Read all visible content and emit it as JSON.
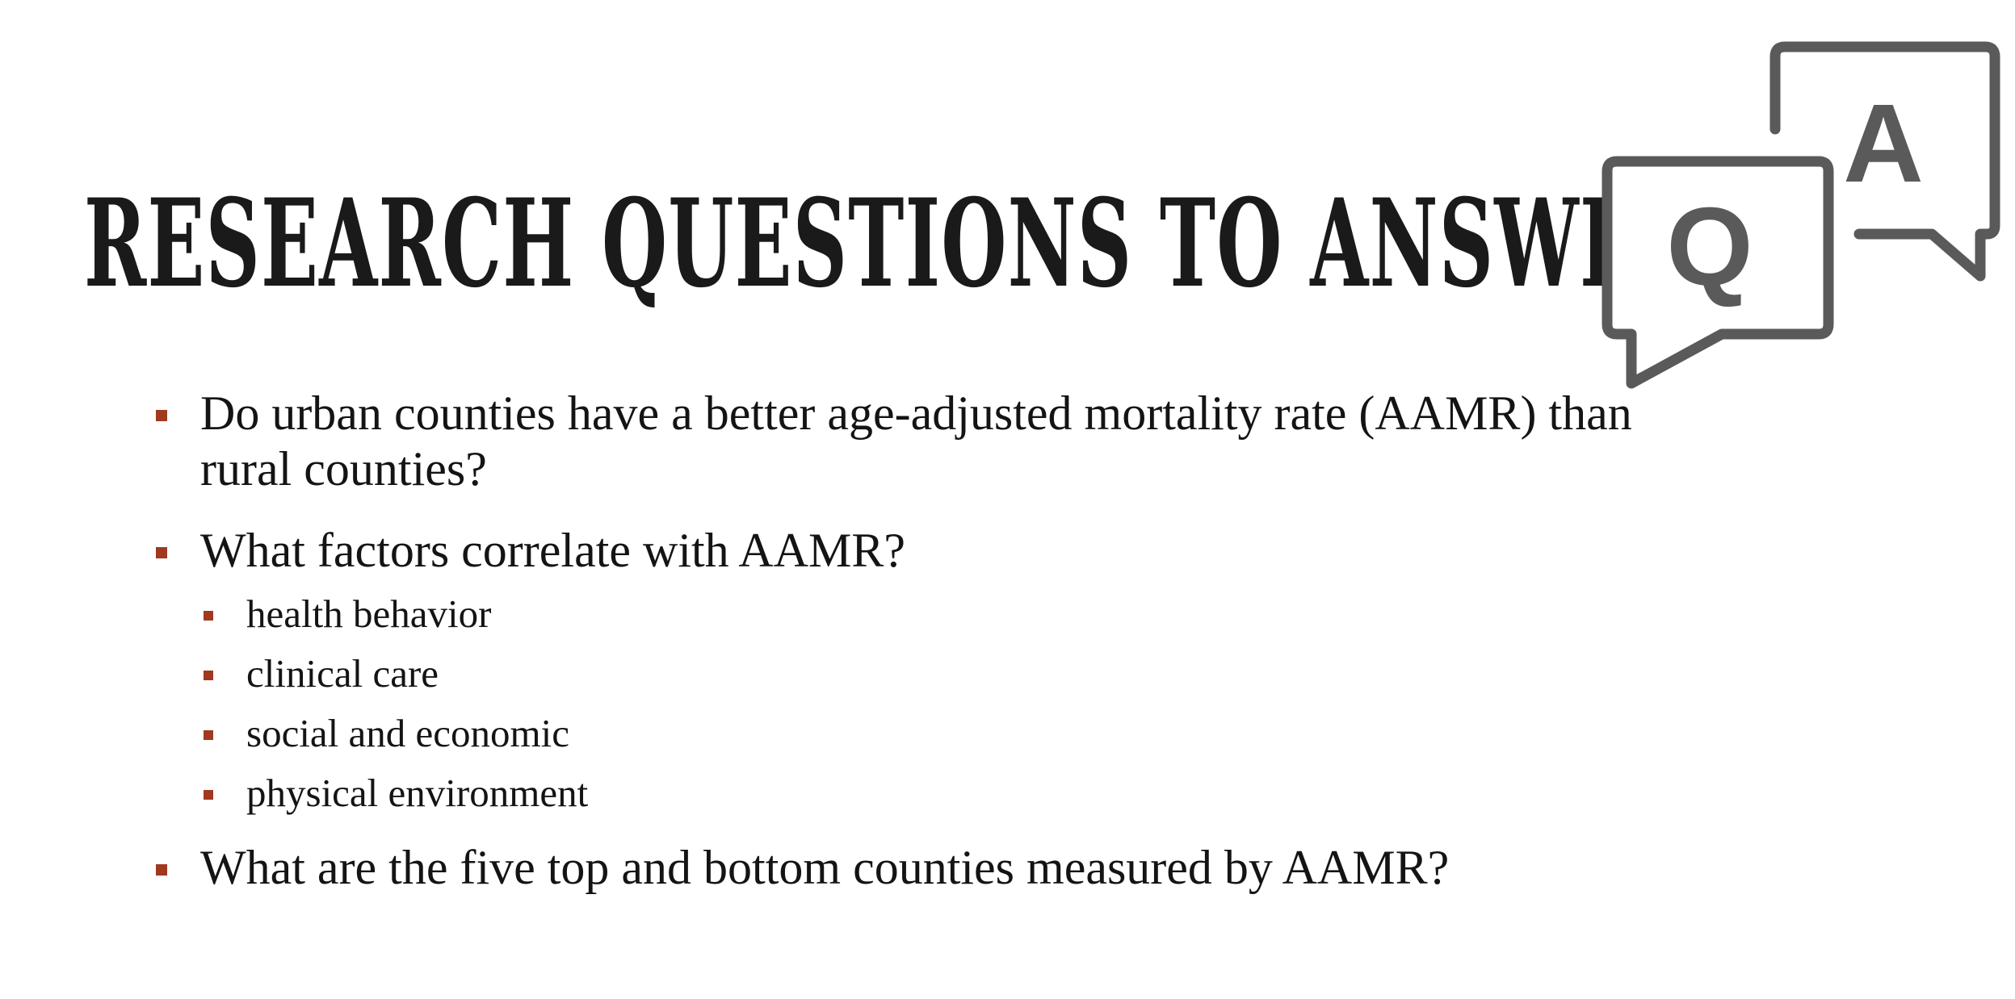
{
  "slide": {
    "title": "Research Questions to Answer",
    "accent_color": "#a0391f",
    "icon_color": "#5a5a5a",
    "qa_icon": {
      "icon": "qa-speech-bubbles-icon",
      "question_letter": "Q",
      "answer_letter": "A"
    },
    "bullets": [
      {
        "text": "Do urban counties have a better age-adjusted mortality rate (AAMR) than rural counties?"
      },
      {
        "text": "What factors correlate with AAMR?",
        "sub": [
          {
            "text": "health behavior"
          },
          {
            "text": "clinical care"
          },
          {
            "text": "social and economic"
          },
          {
            "text": "physical environment"
          }
        ]
      },
      {
        "text": "What are the five top and bottom counties measured by AAMR?"
      }
    ]
  }
}
